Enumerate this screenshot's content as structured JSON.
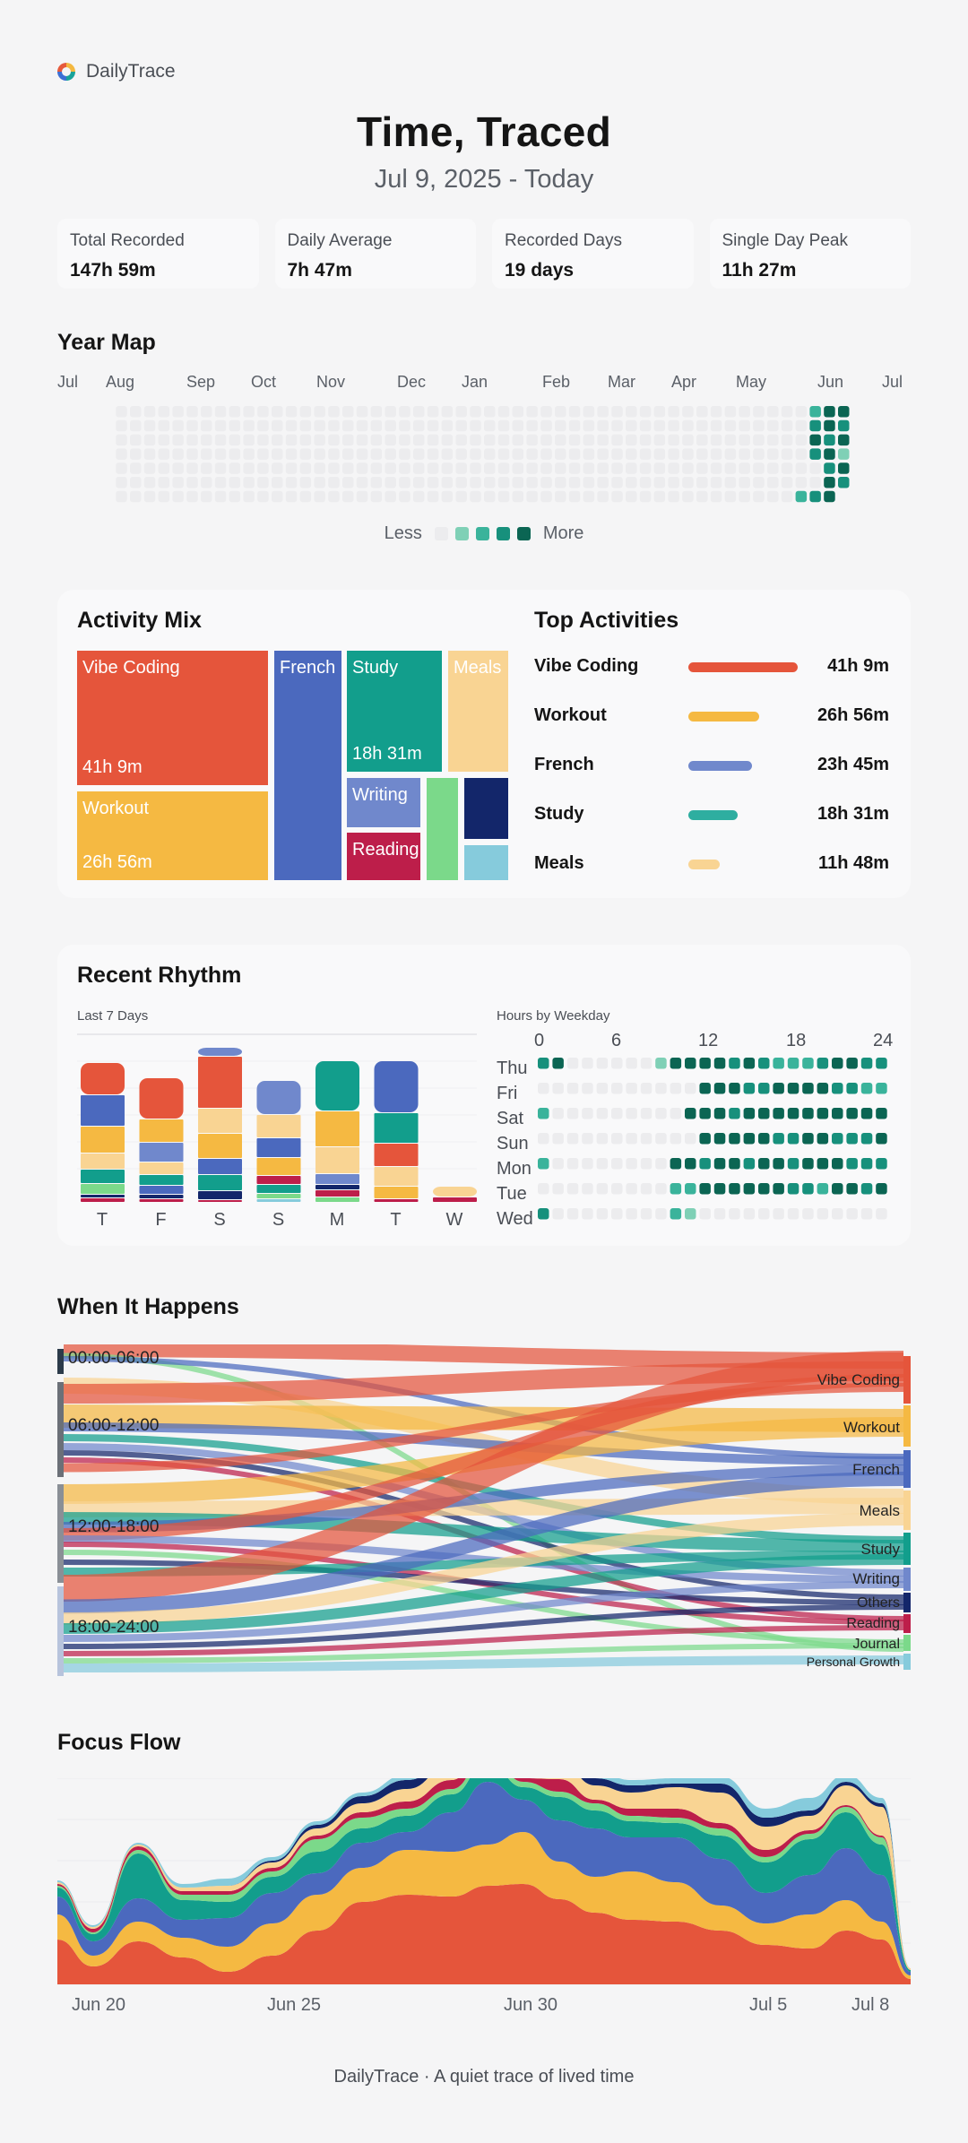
{
  "app": {
    "name": "DailyTrace",
    "title": "Time, Traced",
    "range": "Jul 9, 2025 - Today"
  },
  "stats": [
    {
      "label": "Total Recorded",
      "value": "147h 59m"
    },
    {
      "label": "Daily Average",
      "value": "7h 47m"
    },
    {
      "label": "Recorded Days",
      "value": "19 days"
    },
    {
      "label": "Single Day Peak",
      "value": "11h 27m"
    }
  ],
  "colors": {
    "vibe": "#e5553b",
    "workout": "#f5b942",
    "french": "#4b69be",
    "study": "#129e8c",
    "meals": "#f9d493",
    "writing": "#7088cc",
    "reading": "#bd1e4a",
    "journal": "#7bd98a",
    "others": "#13266a",
    "growth": "#86cbdc",
    "heat": [
      "#ececee",
      "#7fd0b6",
      "#3ab39b",
      "#17907c",
      "#0b6553"
    ]
  },
  "sections": {
    "year_map": "Year Map",
    "activity_mix": "Activity Mix",
    "top_activities": "Top Activities",
    "recent_rhythm": "Recent Rhythm",
    "when": "When It Happens",
    "focus_flow": "Focus Flow"
  },
  "year_map": {
    "months": [
      "Jul",
      "Aug",
      "Sep",
      "Oct",
      "Nov",
      "Dec",
      "Jan",
      "Feb",
      "Mar",
      "Apr",
      "May",
      "Jun",
      "Jul"
    ],
    "legend_less": "Less",
    "legend_more": "More"
  },
  "activity_mix": {
    "vibe": {
      "label": "Vibe Coding",
      "value": "41h 9m"
    },
    "workout": {
      "label": "Workout",
      "value": "26h 56m"
    },
    "french": {
      "label": "French"
    },
    "study": {
      "label": "Study",
      "value": "18h 31m"
    },
    "meals": {
      "label": "Meals"
    },
    "writing": {
      "label": "Writing"
    },
    "reading": {
      "label": "Reading"
    }
  },
  "top_activities": [
    {
      "name": "Vibe Coding",
      "time": "41h 9m",
      "share": 1.0,
      "color": "#e5553b"
    },
    {
      "name": "Workout",
      "time": "26h 56m",
      "share": 0.65,
      "color": "#f5b942"
    },
    {
      "name": "French",
      "time": "23h 45m",
      "share": 0.58,
      "color": "#7088cc"
    },
    {
      "name": "Study",
      "time": "18h 31m",
      "share": 0.45,
      "color": "#2eaea0"
    },
    {
      "name": "Meals",
      "time": "11h 48m",
      "share": 0.29,
      "color": "#f9d493"
    }
  ],
  "recent_rhythm": {
    "last7_label": "Last 7 Days",
    "days": [
      "T",
      "F",
      "S",
      "S",
      "M",
      "T",
      "W"
    ],
    "weekday_label": "Hours by Weekday",
    "hour_ticks": [
      "0",
      "6",
      "12",
      "18",
      "24"
    ],
    "weekdays": [
      "Thu",
      "Fri",
      "Sat",
      "Sun",
      "Mon",
      "Tue",
      "Wed"
    ]
  },
  "when": {
    "slots": [
      "00:00-06:00",
      "06:00-12:00",
      "12:00-18:00",
      "18:00-24:00"
    ],
    "activities": [
      "Vibe Coding",
      "Workout",
      "French",
      "Meals",
      "Study",
      "Writing",
      "Others",
      "Reading",
      "Journal",
      "Personal Growth"
    ]
  },
  "focus_flow": {
    "ticks": [
      "Jun 20",
      "Jun 25",
      "Jun 30",
      "Jul 5",
      "Jul 8"
    ]
  },
  "footer": "DailyTrace · A quiet trace of lived time"
}
